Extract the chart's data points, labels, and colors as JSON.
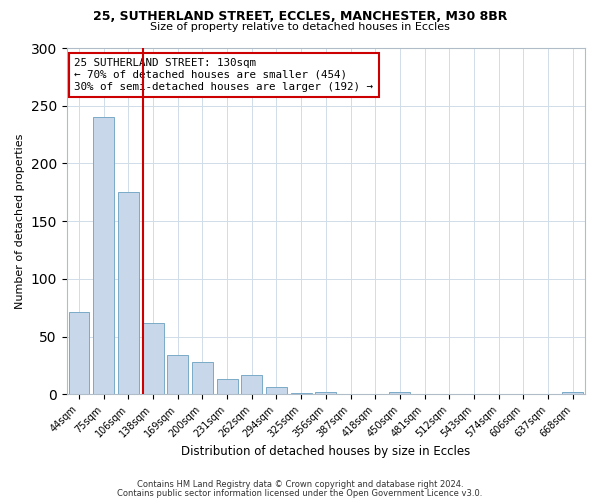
{
  "title": "25, SUTHERLAND STREET, ECCLES, MANCHESTER, M30 8BR",
  "subtitle": "Size of property relative to detached houses in Eccles",
  "xlabel": "Distribution of detached houses by size in Eccles",
  "ylabel": "Number of detached properties",
  "bar_labels": [
    "44sqm",
    "75sqm",
    "106sqm",
    "138sqm",
    "169sqm",
    "200sqm",
    "231sqm",
    "262sqm",
    "294sqm",
    "325sqm",
    "356sqm",
    "387sqm",
    "418sqm",
    "450sqm",
    "481sqm",
    "512sqm",
    "543sqm",
    "574sqm",
    "606sqm",
    "637sqm",
    "668sqm"
  ],
  "bar_heights": [
    71,
    240,
    175,
    62,
    34,
    28,
    13,
    17,
    6,
    1,
    2,
    0,
    0,
    2,
    0,
    0,
    0,
    0,
    0,
    0,
    2
  ],
  "bar_color": "#c8d8ea",
  "bar_edgecolor": "#7aaac8",
  "vline_color": "#cc0000",
  "annotation_title": "25 SUTHERLAND STREET: 130sqm",
  "annotation_line1": "← 70% of detached houses are smaller (454)",
  "annotation_line2": "30% of semi-detached houses are larger (192) →",
  "annotation_box_edgecolor": "#cc0000",
  "ylim": [
    0,
    300
  ],
  "yticks": [
    0,
    50,
    100,
    150,
    200,
    250,
    300
  ],
  "footer1": "Contains HM Land Registry data © Crown copyright and database right 2024.",
  "footer2": "Contains public sector information licensed under the Open Government Licence v3.0."
}
